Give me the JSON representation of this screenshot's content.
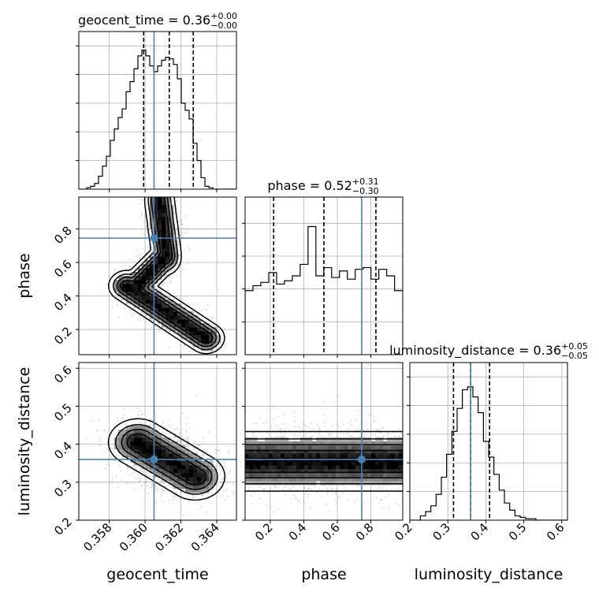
{
  "chart_data": {
    "type": "corner",
    "parameters": [
      "geocent_time",
      "phase",
      "luminosity_distance"
    ],
    "injection": {
      "geocent_time": 0.3605,
      "phase": 0.745,
      "luminosity_distance": 0.36
    },
    "injection_color": "#4682b4",
    "summary": [
      {
        "param": "geocent_time",
        "label": "geocent_time = 0.36",
        "plus": "+0.00",
        "minus": "−0.00"
      },
      {
        "param": "phase",
        "label": "phase = 0.52",
        "plus": "+0.31",
        "minus": "−0.30"
      },
      {
        "param": "luminosity_distance",
        "label": "luminosity_distance = 0.36",
        "plus": "+0.05",
        "minus": "−0.05"
      }
    ],
    "axes": {
      "geocent_time": {
        "lim": [
          0.3563,
          0.3651
        ],
        "ticks": [
          0.358,
          0.36,
          0.362,
          0.364
        ],
        "tick_labels": [
          "0.358",
          "0.360",
          "0.362",
          "0.364"
        ],
        "label": "geocent_time"
      },
      "phase": {
        "lim": [
          0.05,
          0.99
        ],
        "ticks": [
          0.2,
          0.4,
          0.6,
          0.8
        ],
        "tick_labels": [
          "0.2",
          "0.4",
          "0.6",
          "0.8"
        ],
        "label": "phase"
      },
      "luminosity_distance": {
        "lim": [
          0.2,
          0.615
        ],
        "ticks": [
          0.2,
          0.3,
          0.4,
          0.5,
          0.6
        ],
        "tick_labels": [
          "0.2",
          "0.3",
          "0.4",
          "0.5",
          "0.6"
        ],
        "label": "luminosity_distance"
      }
    },
    "histograms": {
      "geocent_time": {
        "edges": [
          0.3563,
          0.35652,
          0.35674,
          0.35696,
          0.35718,
          0.3574,
          0.35762,
          0.35784,
          0.35806,
          0.35828,
          0.3585,
          0.35872,
          0.35894,
          0.35916,
          0.35938,
          0.3596,
          0.35982,
          0.36004,
          0.36026,
          0.36048,
          0.3607,
          0.36092,
          0.36114,
          0.36136,
          0.36158,
          0.3618,
          0.36202,
          0.36224,
          0.36246,
          0.36268,
          0.3629,
          0.36312,
          0.36334,
          0.36356,
          0.36378,
          0.364,
          0.36422,
          0.36444,
          0.36466,
          0.36488,
          0.3651
        ],
        "counts": [
          0,
          0,
          1,
          2,
          4,
          9,
          16,
          23,
          34,
          42,
          50,
          56,
          68,
          75,
          84,
          93,
          97,
          93,
          86,
          82,
          86,
          90,
          92,
          91,
          87,
          77,
          60,
          55,
          49,
          32,
          20,
          8,
          2,
          1,
          0,
          0,
          0,
          0,
          0,
          0
        ],
        "quantiles": [
          0.35992,
          0.36135,
          0.36269
        ],
        "ymax": 110,
        "yticks": [
          20,
          40,
          60,
          80,
          100
        ]
      },
      "phase": {
        "edges": [
          0.05,
          0.0969,
          0.1438,
          0.1907,
          0.2376,
          0.2845,
          0.3314,
          0.3783,
          0.4252,
          0.4721,
          0.519,
          0.5659,
          0.6128,
          0.6597,
          0.7066,
          0.7535,
          0.8004,
          0.8473,
          0.8942,
          0.9411,
          0.99
        ],
        "counts": [
          39,
          42,
          44,
          50,
          43,
          45,
          48,
          55,
          78,
          48,
          53,
          47,
          51,
          46,
          52,
          53,
          46,
          52,
          48,
          39
        ],
        "quantiles": [
          0.22,
          0.52,
          0.83
        ],
        "ymax": 96,
        "yticks": [
          20,
          40,
          60,
          80
        ]
      },
      "luminosity_distance": {
        "edges": [
          0.2,
          0.2138,
          0.2277,
          0.2415,
          0.2553,
          0.2692,
          0.283,
          0.2968,
          0.3107,
          0.3245,
          0.3383,
          0.3522,
          0.366,
          0.3798,
          0.3937,
          0.4075,
          0.4213,
          0.4352,
          0.449,
          0.4628,
          0.4767,
          0.4905,
          0.5043,
          0.5182,
          0.532,
          0.5458,
          0.5597,
          0.5735,
          0.5873,
          0.6012,
          0.615
        ],
        "counts": [
          0,
          0,
          3,
          6,
          10,
          18,
          30,
          46,
          62,
          78,
          91,
          93,
          86,
          75,
          55,
          44,
          32,
          21,
          12,
          7,
          3,
          2,
          1,
          1,
          0,
          0,
          0,
          0,
          0,
          0
        ],
        "quantiles": [
          0.315,
          0.36,
          0.41
        ],
        "ymax": 110,
        "yticks": [
          20,
          40,
          60,
          80,
          100
        ]
      }
    },
    "contour_levels": [
      0.12,
      0.3,
      0.52,
      0.75
    ],
    "density_2d": {
      "phase|geocent_time": {
        "x": "geocent_time",
        "y": "phase",
        "segments": [
          {
            "from": [
              0.359,
              0.46
            ],
            "to": [
              0.3634,
              0.15
            ],
            "sx": 0.0005,
            "sy": 0.045
          },
          {
            "from": [
              0.3596,
              0.47
            ],
            "to": [
              0.3612,
              0.64
            ],
            "sx": 0.0004,
            "sy": 0.045
          },
          {
            "from": [
              0.3612,
              0.64
            ],
            "to": [
              0.3608,
              0.97
            ],
            "sx": 0.0004,
            "sy": 0.055
          }
        ]
      },
      "luminosity_distance|geocent_time": {
        "x": "geocent_time",
        "y": "luminosity_distance",
        "segments": [
          {
            "from": [
              0.3596,
              0.405
            ],
            "to": [
              0.3628,
              0.315
            ],
            "sx": 0.0008,
            "sy": 0.03
          }
        ]
      },
      "luminosity_distance|phase": {
        "x": "phase",
        "y": "luminosity_distance",
        "segments": [
          {
            "from": [
              0.05,
              0.355
            ],
            "to": [
              0.99,
              0.355
            ],
            "sx": 0.06,
            "sy": 0.038
          }
        ]
      }
    }
  }
}
